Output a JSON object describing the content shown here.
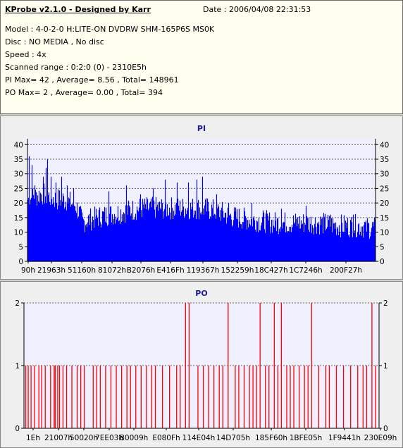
{
  "header": {
    "title": "KProbe v2.1.0 - Designed by Karr",
    "date": "Date : 2006/04/08 22:31:53",
    "lines": [
      "Model : 4-0-2-0 H:LITE-ON DVDRW SHM-165P6S MS0K",
      "Disc : NO MEDIA , No disc",
      "Speed : 4x",
      "Scanned range : 0:2:0 (0) - 2310E5h",
      "PI Max= 42 , Average= 8.56 , Total= 148961",
      "PO Max= 2 , Average= 0.00 , Total= 394"
    ]
  },
  "chart_data": [
    {
      "type": "bar",
      "title": "PI",
      "color": "#0000ff",
      "ylim": [
        0,
        42
      ],
      "yticks": [
        0,
        5,
        10,
        15,
        20,
        25,
        30,
        35,
        40
      ],
      "grid": true,
      "xtick_labels": [
        "90h",
        "21963h",
        "51160h",
        "81072h",
        "B2076h",
        "E416Fh",
        "119367h",
        "152259h",
        "18C427h",
        "1C7246h",
        "200F27h"
      ],
      "profile": [
        [
          0,
          20
        ],
        [
          10,
          21
        ],
        [
          20,
          22
        ],
        [
          30,
          21
        ],
        [
          40,
          20
        ],
        [
          50,
          20
        ],
        [
          60,
          19
        ],
        [
          68,
          18
        ],
        [
          72,
          16
        ],
        [
          78,
          12
        ],
        [
          85,
          13
        ],
        [
          100,
          14
        ],
        [
          120,
          15
        ],
        [
          140,
          16
        ],
        [
          160,
          17
        ],
        [
          180,
          17
        ],
        [
          200,
          17
        ],
        [
          220,
          17
        ],
        [
          250,
          17
        ],
        [
          270,
          16
        ],
        [
          290,
          14
        ],
        [
          320,
          13
        ],
        [
          350,
          12
        ],
        [
          380,
          12
        ],
        [
          410,
          12
        ],
        [
          440,
          11
        ],
        [
          470,
          11
        ],
        [
          494,
          10
        ],
        [
          500,
          11
        ]
      ],
      "peaks": [
        [
          2,
          36
        ],
        [
          6,
          33
        ],
        [
          10,
          26
        ],
        [
          22,
          29
        ],
        [
          26,
          32
        ],
        [
          28,
          35
        ],
        [
          33,
          29
        ],
        [
          40,
          27
        ],
        [
          48,
          29
        ],
        [
          56,
          26
        ],
        [
          65,
          25
        ],
        [
          115,
          24
        ],
        [
          140,
          26
        ],
        [
          160,
          23
        ],
        [
          178,
          25
        ],
        [
          195,
          28
        ],
        [
          212,
          27
        ],
        [
          228,
          27
        ],
        [
          240,
          28
        ],
        [
          248,
          29
        ],
        [
          268,
          23
        ],
        [
          285,
          20
        ],
        [
          318,
          20
        ],
        [
          360,
          18
        ],
        [
          395,
          19
        ],
        [
          430,
          16
        ],
        [
          462,
          16
        ],
        [
          480,
          14
        ]
      ]
    },
    {
      "type": "bar",
      "title": "PO",
      "color": "#ff0000",
      "ylim": [
        0,
        2
      ],
      "yticks": [
        0,
        1,
        2
      ],
      "grid": true,
      "xtick_labels": [
        "1Eh",
        "21007h",
        "50020h",
        "7EE03h",
        "B0009h",
        "E080Fh",
        "114E04h",
        "14D705h",
        "185F60h",
        "1BFE05h",
        "1F9441h",
        "230E09h"
      ],
      "twos": [
        0.455,
        0.465,
        0.575,
        0.665,
        0.705,
        0.725,
        0.81,
        0.98
      ],
      "ones": [
        0.005,
        0.012,
        0.02,
        0.03,
        0.042,
        0.05,
        0.06,
        0.075,
        0.085,
        0.088,
        0.095,
        0.1,
        0.11,
        0.12,
        0.135,
        0.15,
        0.16,
        0.17,
        0.195,
        0.205,
        0.215,
        0.23,
        0.245,
        0.26,
        0.275,
        0.29,
        0.3,
        0.315,
        0.33,
        0.345,
        0.36,
        0.37,
        0.39,
        0.41,
        0.43,
        0.44,
        0.49,
        0.505,
        0.52,
        0.535,
        0.55,
        0.56,
        0.595,
        0.605,
        0.62,
        0.635,
        0.645,
        0.655,
        0.68,
        0.69,
        0.715,
        0.74,
        0.75,
        0.76,
        0.775,
        0.79,
        0.8,
        0.83,
        0.85,
        0.86,
        0.88,
        0.9,
        0.92,
        0.94,
        0.955,
        0.965,
        0.99
      ]
    }
  ]
}
